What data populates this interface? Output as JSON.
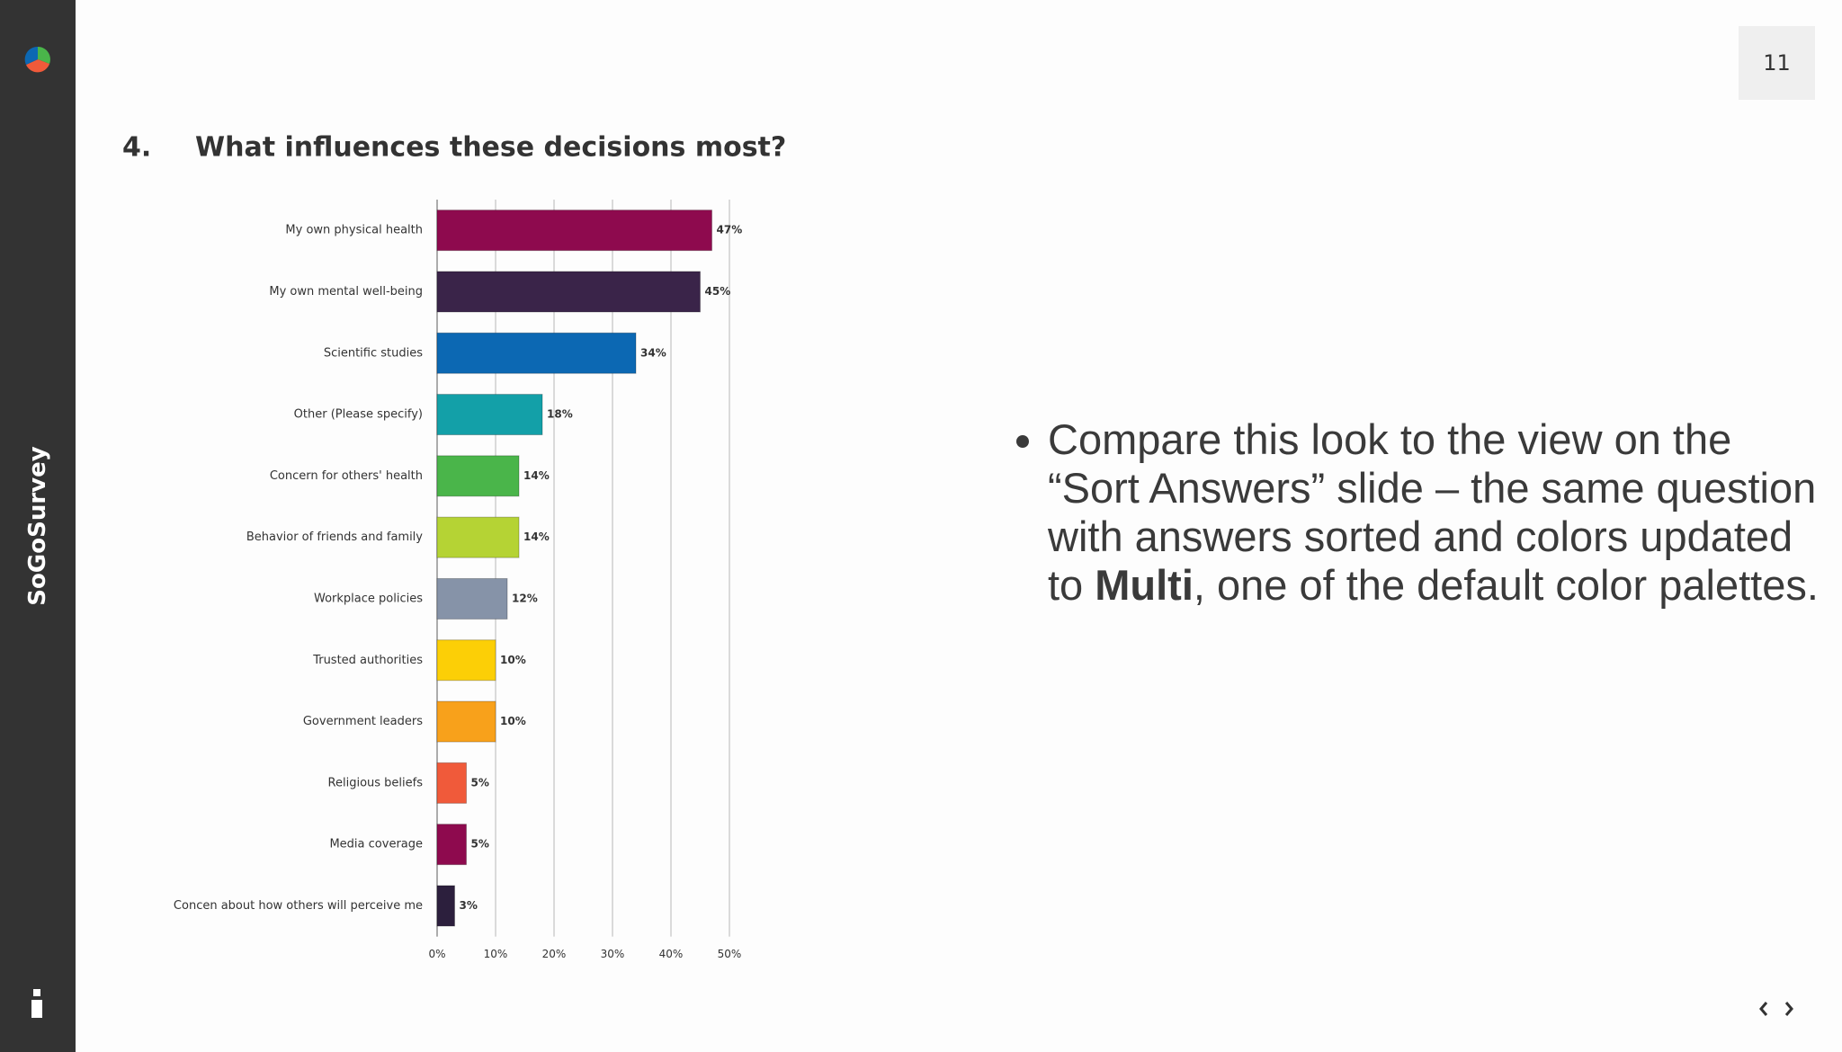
{
  "sidebar": {
    "brand": "SoGoSurvey"
  },
  "page_number": "11",
  "chart_data": {
    "type": "bar",
    "orientation": "horizontal",
    "question_number": "4.",
    "title": "What influences these decisions most?",
    "categories": [
      "My own physical health",
      "My own mental well-being",
      "Scientific studies",
      "Other (Please specify)",
      "Concern for others' health",
      "Behavior of friends and family",
      "Workplace policies",
      "Trusted authorities",
      "Government leaders",
      "Religious beliefs",
      "Media coverage",
      "Concen about how others will perceive me"
    ],
    "values": [
      47,
      45,
      34,
      18,
      14,
      14,
      12,
      10,
      10,
      5,
      5,
      3
    ],
    "value_labels": [
      "47%",
      "45%",
      "34%",
      "18%",
      "14%",
      "14%",
      "12%",
      "10%",
      "10%",
      "5%",
      "5%",
      "3%"
    ],
    "colors": [
      "#8e0a4e",
      "#3a2449",
      "#0c68b3",
      "#13a0a8",
      "#4ab54a",
      "#b5d334",
      "#8693a8",
      "#fccf06",
      "#f8a11b",
      "#f05a3a",
      "#8e0a4e",
      "#2c1f3d"
    ],
    "xlim": [
      0,
      50
    ],
    "xticks": [
      {
        "value": 0,
        "label": "0%"
      },
      {
        "value": 10,
        "label": "10%"
      },
      {
        "value": 20,
        "label": "20%"
      },
      {
        "value": 30,
        "label": "30%"
      },
      {
        "value": 40,
        "label": "40%"
      },
      {
        "value": 50,
        "label": "50%"
      }
    ],
    "grid": true
  },
  "bullet": {
    "before": "Compare this look to the view on the “Sort Answers” slide – the same question with answers sorted and colors updated to ",
    "bold": "Multi",
    "after": ", one of the default color palettes."
  }
}
